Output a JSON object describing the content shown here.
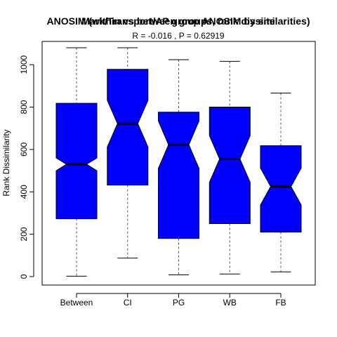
{
  "chart_data": {
    "type": "boxplot",
    "title_overlay": [
      "ANOSIM (within vs between groups, rank dissimilarities)",
      "Mark/Transport/AP group ANOSIM by site"
    ],
    "subtitle": "R =  -0.016 ,  P =  0.62919",
    "ylabel": "Rank Dissimilarity",
    "xlabel": "",
    "ylim": [
      -40,
      1110
    ],
    "yticks": [
      0,
      200,
      400,
      600,
      800,
      1000
    ],
    "notched": true,
    "colors": {
      "box": "#0000ff",
      "outline": "#000000",
      "whisker": "#555555"
    },
    "boxes": [
      {
        "label": "Between",
        "min": 2,
        "q1": 273,
        "median": 530,
        "q3": 818,
        "max": 1080,
        "notch_low": 500,
        "notch_high": 560
      },
      {
        "label": "CI",
        "min": 87,
        "q1": 432,
        "median": 722,
        "q3": 978,
        "max": 1080,
        "notch_low": 612,
        "notch_high": 832
      },
      {
        "label": "PG",
        "min": 8,
        "q1": 180,
        "median": 622,
        "q3": 776,
        "max": 1024,
        "notch_low": 510,
        "notch_high": 735
      },
      {
        "label": "WB",
        "min": 12,
        "q1": 250,
        "median": 555,
        "q3": 800,
        "max": 1016,
        "notch_low": 445,
        "notch_high": 665
      },
      {
        "label": "FB",
        "min": 22,
        "q1": 210,
        "median": 425,
        "q3": 618,
        "max": 866,
        "notch_low": 338,
        "notch_high": 512
      }
    ]
  }
}
